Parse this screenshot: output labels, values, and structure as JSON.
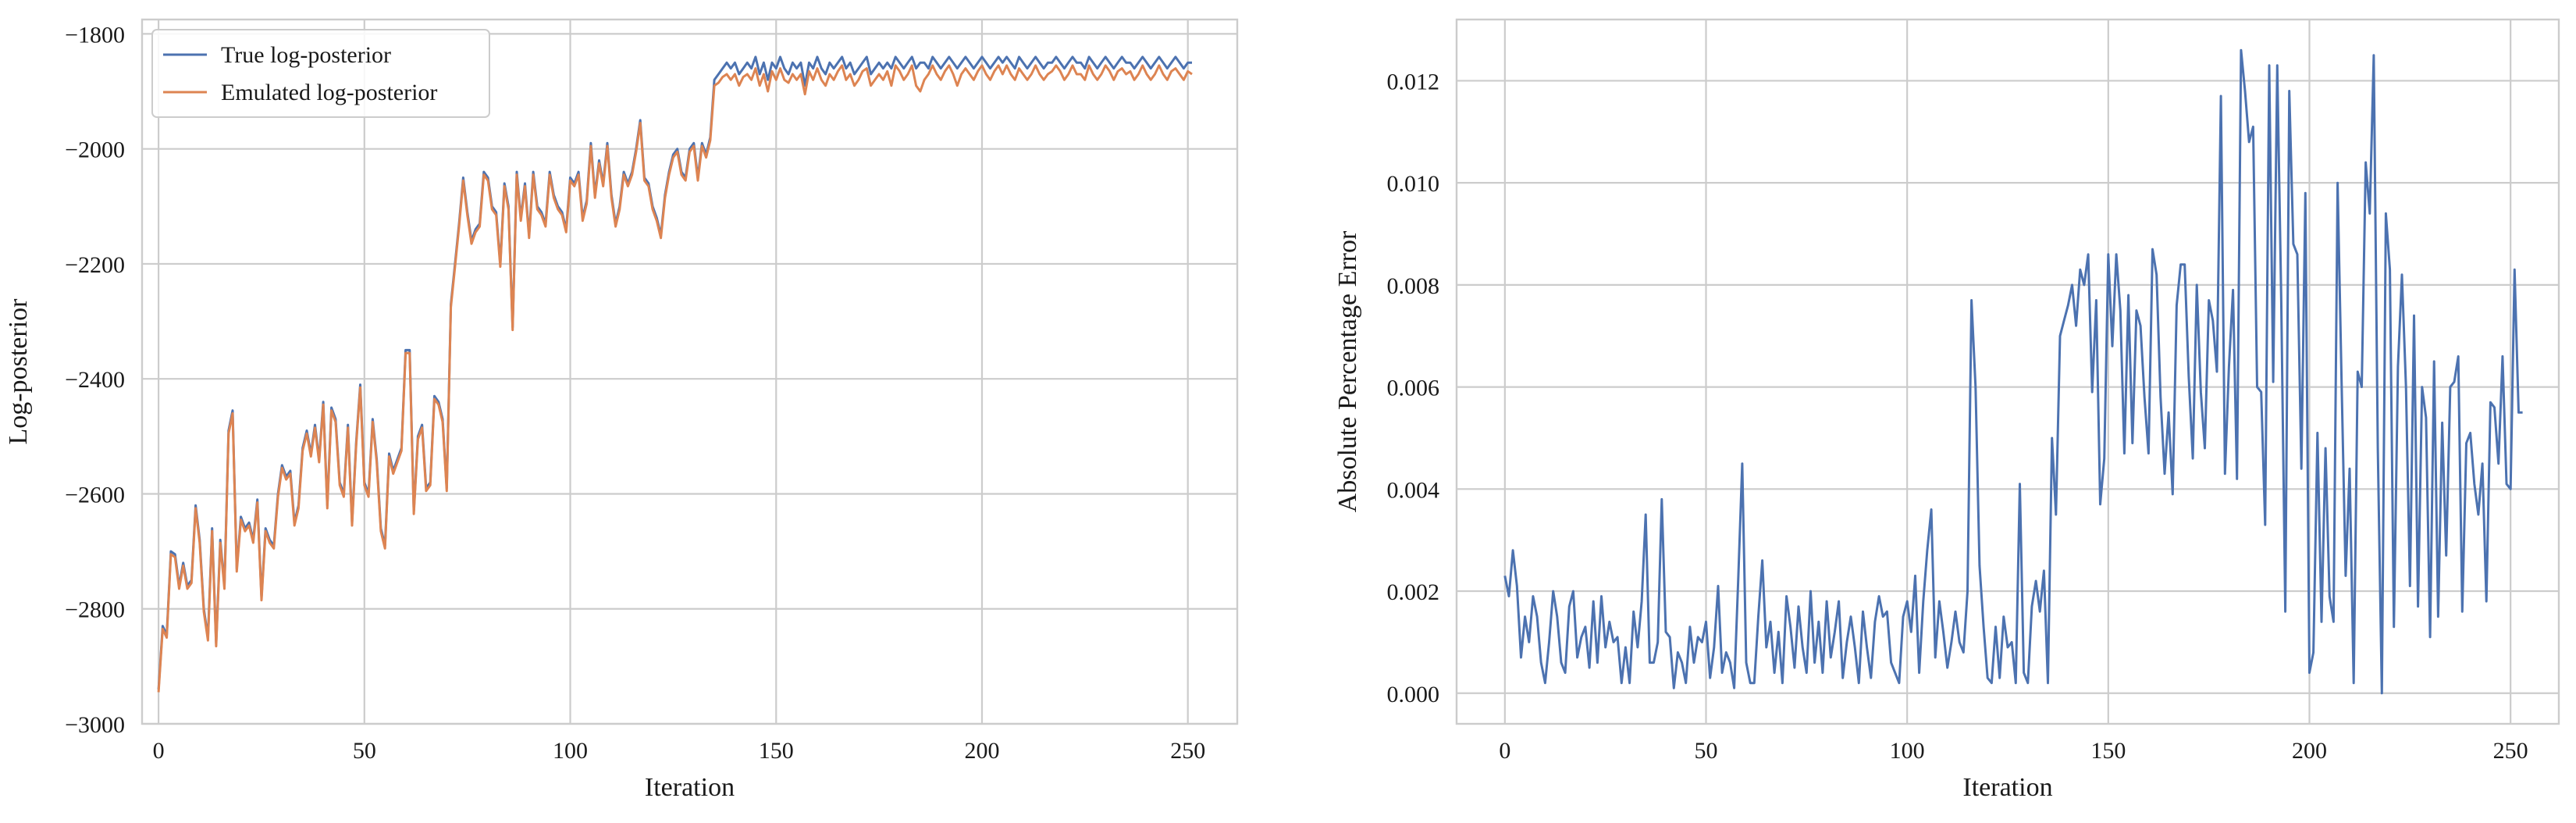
{
  "chart_data": [
    {
      "type": "line",
      "title": "",
      "xlabel": "Iteration",
      "ylabel": "Log-posterior",
      "xlim": [
        -4,
        262
      ],
      "ylim": [
        -3000,
        -1775
      ],
      "xticks": [
        0,
        50,
        100,
        150,
        200,
        250
      ],
      "yticks": [
        -3000,
        -2800,
        -2600,
        -2400,
        -2200,
        -2000,
        -1800
      ],
      "xtick_labels": [
        "0",
        "50",
        "100",
        "150",
        "200",
        "250"
      ],
      "ytick_labels": [
        "−3000",
        "−2800",
        "−2600",
        "−2400",
        "−2200",
        "−2000",
        "−1800"
      ],
      "grid": true,
      "legend_position": "top-left",
      "series": [
        {
          "name": "True log-posterior",
          "color": "#4c72b0",
          "y": [
            -2940,
            -2830,
            -2845,
            -2700,
            -2705,
            -2760,
            -2720,
            -2760,
            -2750,
            -2620,
            -2680,
            -2800,
            -2850,
            -2660,
            -2860,
            -2680,
            -2760,
            -2490,
            -2455,
            -2730,
            -2640,
            -2660,
            -2650,
            -2680,
            -2610,
            -2780,
            -2660,
            -2680,
            -2690,
            -2600,
            -2550,
            -2570,
            -2560,
            -2650,
            -2620,
            -2520,
            -2490,
            -2530,
            -2480,
            -2540,
            -2440,
            -2620,
            -2450,
            -2470,
            -2580,
            -2600,
            -2480,
            -2650,
            -2510,
            -2410,
            -2580,
            -2600,
            -2470,
            -2540,
            -2660,
            -2690,
            -2530,
            -2560,
            -2540,
            -2520,
            -2350,
            -2350,
            -2630,
            -2500,
            -2480,
            -2590,
            -2580,
            -2430,
            -2440,
            -2470,
            -2590,
            -2270,
            -2200,
            -2130,
            -2050,
            -2110,
            -2160,
            -2140,
            -2130,
            -2040,
            -2050,
            -2100,
            -2110,
            -2200,
            -2060,
            -2100,
            -2310,
            -2040,
            -2120,
            -2060,
            -2150,
            -2040,
            -2100,
            -2110,
            -2130,
            -2040,
            -2080,
            -2100,
            -2110,
            -2140,
            -2050,
            -2060,
            -2040,
            -2120,
            -2090,
            -1990,
            -2080,
            -2020,
            -2060,
            -1990,
            -2080,
            -2130,
            -2100,
            -2040,
            -2060,
            -2040,
            -2000,
            -1950,
            -2050,
            -2060,
            -2100,
            -2120,
            -2150,
            -2080,
            -2040,
            -2010,
            -2000,
            -2040,
            -2050,
            -2000,
            -1990,
            -2050,
            -1990,
            -2010,
            -1980,
            -1880,
            -1870,
            -1860,
            -1850,
            -1860,
            -1850,
            -1870,
            -1860,
            -1850,
            -1860,
            -1840,
            -1870,
            -1850,
            -1880,
            -1850,
            -1860,
            -1840,
            -1860,
            -1870,
            -1850,
            -1860,
            -1850,
            -1890,
            -1850,
            -1860,
            -1840,
            -1860,
            -1870,
            -1850,
            -1860,
            -1850,
            -1840,
            -1860,
            -1850,
            -1870,
            -1860,
            -1850,
            -1840,
            -1870,
            -1860,
            -1850,
            -1860,
            -1850,
            -1860,
            -1840,
            -1850,
            -1860,
            -1850,
            -1840,
            -1860,
            -1850,
            -1850,
            -1860,
            -1840,
            -1850,
            -1860,
            -1850,
            -1840,
            -1850,
            -1860,
            -1850,
            -1840,
            -1850,
            -1860,
            -1850,
            -1840,
            -1850,
            -1860,
            -1850,
            -1840,
            -1850,
            -1840,
            -1850,
            -1860,
            -1840,
            -1850,
            -1860,
            -1850,
            -1840,
            -1850,
            -1860,
            -1850,
            -1850,
            -1840,
            -1850,
            -1860,
            -1850,
            -1840,
            -1850,
            -1850,
            -1860,
            -1840,
            -1850,
            -1860,
            -1850,
            -1840,
            -1850,
            -1860,
            -1850,
            -1840,
            -1850,
            -1850,
            -1860,
            -1850,
            -1840,
            -1850,
            -1860,
            -1850,
            -1840,
            -1850,
            -1860,
            -1850,
            -1840,
            -1850,
            -1860,
            -1850,
            -1850
          ]
        },
        {
          "name": "Emulated log-posterior",
          "color": "#dd8452",
          "y": [
            -2945,
            -2835,
            -2850,
            -2705,
            -2710,
            -2765,
            -2725,
            -2765,
            -2755,
            -2625,
            -2685,
            -2805,
            -2855,
            -2665,
            -2865,
            -2685,
            -2765,
            -2495,
            -2460,
            -2735,
            -2645,
            -2665,
            -2655,
            -2685,
            -2615,
            -2785,
            -2665,
            -2685,
            -2695,
            -2605,
            -2555,
            -2575,
            -2565,
            -2655,
            -2625,
            -2525,
            -2495,
            -2535,
            -2485,
            -2545,
            -2445,
            -2625,
            -2455,
            -2475,
            -2585,
            -2605,
            -2485,
            -2655,
            -2515,
            -2415,
            -2585,
            -2605,
            -2475,
            -2545,
            -2665,
            -2695,
            -2535,
            -2565,
            -2545,
            -2525,
            -2355,
            -2355,
            -2635,
            -2505,
            -2485,
            -2595,
            -2585,
            -2435,
            -2445,
            -2475,
            -2595,
            -2275,
            -2205,
            -2135,
            -2055,
            -2115,
            -2165,
            -2145,
            -2135,
            -2045,
            -2055,
            -2105,
            -2115,
            -2205,
            -2065,
            -2105,
            -2315,
            -2045,
            -2125,
            -2065,
            -2155,
            -2045,
            -2105,
            -2115,
            -2135,
            -2045,
            -2085,
            -2105,
            -2115,
            -2145,
            -2055,
            -2065,
            -2045,
            -2125,
            -2095,
            -1995,
            -2085,
            -2025,
            -2065,
            -1995,
            -2085,
            -2135,
            -2105,
            -2045,
            -2065,
            -2045,
            -2005,
            -1955,
            -2055,
            -2065,
            -2105,
            -2125,
            -2155,
            -2085,
            -2045,
            -2015,
            -2005,
            -2045,
            -2055,
            -2005,
            -1995,
            -2055,
            -1995,
            -2015,
            -1985,
            -1890,
            -1885,
            -1875,
            -1870,
            -1880,
            -1870,
            -1890,
            -1875,
            -1870,
            -1880,
            -1860,
            -1890,
            -1870,
            -1900,
            -1865,
            -1880,
            -1860,
            -1880,
            -1885,
            -1870,
            -1880,
            -1870,
            -1905,
            -1865,
            -1880,
            -1860,
            -1880,
            -1890,
            -1870,
            -1880,
            -1865,
            -1855,
            -1880,
            -1870,
            -1890,
            -1880,
            -1865,
            -1860,
            -1890,
            -1880,
            -1870,
            -1880,
            -1865,
            -1890,
            -1855,
            -1865,
            -1880,
            -1870,
            -1855,
            -1890,
            -1900,
            -1880,
            -1870,
            -1855,
            -1870,
            -1880,
            -1865,
            -1855,
            -1870,
            -1890,
            -1870,
            -1860,
            -1870,
            -1880,
            -1865,
            -1855,
            -1870,
            -1880,
            -1865,
            -1855,
            -1870,
            -1855,
            -1870,
            -1880,
            -1860,
            -1870,
            -1880,
            -1870,
            -1855,
            -1870,
            -1880,
            -1870,
            -1865,
            -1855,
            -1865,
            -1880,
            -1870,
            -1855,
            -1870,
            -1870,
            -1880,
            -1855,
            -1870,
            -1880,
            -1870,
            -1855,
            -1865,
            -1880,
            -1865,
            -1860,
            -1870,
            -1865,
            -1880,
            -1870,
            -1855,
            -1870,
            -1880,
            -1870,
            -1855,
            -1870,
            -1880,
            -1865,
            -1860,
            -1870,
            -1880,
            -1865,
            -1870
          ]
        }
      ]
    },
    {
      "type": "line",
      "title": "",
      "xlabel": "Iteration",
      "ylabel": "Absolute Percentage Error",
      "xlim": [
        -12,
        262
      ],
      "ylim": [
        -0.0006,
        0.0132
      ],
      "xticks": [
        0,
        50,
        100,
        150,
        200,
        250
      ],
      "yticks": [
        0.0,
        0.002,
        0.004,
        0.006,
        0.008,
        0.01,
        0.012
      ],
      "xtick_labels": [
        "0",
        "50",
        "100",
        "150",
        "200",
        "250"
      ],
      "ytick_labels": [
        "0.000",
        "0.002",
        "0.004",
        "0.006",
        "0.008",
        "0.010",
        "0.012"
      ],
      "grid": true,
      "series": [
        {
          "color": "#4c72b0",
          "y": [
            0.0023,
            0.0019,
            0.0028,
            0.0021,
            0.0007,
            0.0015,
            0.001,
            0.0019,
            0.0015,
            0.0006,
            0.0002,
            0.001,
            0.002,
            0.0015,
            0.0006,
            0.0004,
            0.0017,
            0.002,
            0.0007,
            0.0011,
            0.0013,
            0.0005,
            0.0018,
            0.0006,
            0.0019,
            0.0009,
            0.0014,
            0.001,
            0.0011,
            0.0002,
            0.0009,
            0.0002,
            0.0016,
            0.0009,
            0.0018,
            0.0035,
            0.0006,
            0.0006,
            0.001,
            0.0038,
            0.0012,
            0.0011,
            0.0001,
            0.0008,
            0.0006,
            0.0002,
            0.0013,
            0.0006,
            0.0011,
            0.001,
            0.0014,
            0.0003,
            0.0009,
            0.0021,
            0.0004,
            0.0008,
            0.0006,
            0.0001,
            0.0022,
            0.0045,
            0.0006,
            0.0002,
            0.0002,
            0.0015,
            0.0026,
            0.0009,
            0.0014,
            0.0004,
            0.0012,
            0.0002,
            0.0019,
            0.0013,
            0.0005,
            0.0017,
            0.0009,
            0.0004,
            0.002,
            0.0006,
            0.0014,
            0.0004,
            0.0018,
            0.0007,
            0.0012,
            0.0018,
            0.0003,
            0.001,
            0.0015,
            0.0009,
            0.0002,
            0.0016,
            0.0009,
            0.0003,
            0.0014,
            0.0019,
            0.0015,
            0.0016,
            0.0006,
            0.0004,
            0.0002,
            0.0015,
            0.0018,
            0.0012,
            0.0023,
            0.0004,
            0.0018,
            0.0028,
            0.0036,
            0.0007,
            0.0018,
            0.0012,
            0.0005,
            0.001,
            0.0016,
            0.001,
            0.0008,
            0.002,
            0.0077,
            0.006,
            0.0025,
            0.0013,
            0.0003,
            0.0002,
            0.0013,
            0.0003,
            0.0015,
            0.0009,
            0.001,
            0.0002,
            0.0041,
            0.0004,
            0.0002,
            0.0017,
            0.0022,
            0.0016,
            0.0024,
            0.0002,
            0.005,
            0.0035,
            0.007,
            0.0073,
            0.0076,
            0.008,
            0.0072,
            0.0083,
            0.008,
            0.0086,
            0.0059,
            0.0077,
            0.0037,
            0.0046,
            0.0086,
            0.0068,
            0.0086,
            0.0075,
            0.0047,
            0.0078,
            0.0049,
            0.0075,
            0.0072,
            0.0058,
            0.0047,
            0.0087,
            0.0082,
            0.0058,
            0.0043,
            0.0055,
            0.0039,
            0.0076,
            0.0084,
            0.0084,
            0.0062,
            0.0046,
            0.008,
            0.0059,
            0.0048,
            0.0077,
            0.0073,
            0.0063,
            0.0117,
            0.0043,
            0.0064,
            0.0079,
            0.0042,
            0.0126,
            0.0118,
            0.0108,
            0.0111,
            0.006,
            0.0059,
            0.0033,
            0.0123,
            0.0061,
            0.0123,
            0.0077,
            0.0016,
            0.0118,
            0.0088,
            0.0086,
            0.0044,
            0.0098,
            0.0004,
            0.0008,
            0.0051,
            0.0014,
            0.0048,
            0.0019,
            0.0014,
            0.01,
            0.0061,
            0.0023,
            0.0044,
            0.0002,
            0.0063,
            0.006,
            0.0104,
            0.0094,
            0.0125,
            0.0048,
            0.0,
            0.0094,
            0.0083,
            0.0013,
            0.0064,
            0.0082,
            0.006,
            0.0021,
            0.0074,
            0.0017,
            0.006,
            0.0054,
            0.0011,
            0.0065,
            0.0015,
            0.0053,
            0.0027,
            0.006,
            0.0061,
            0.0066,
            0.0016,
            0.0049,
            0.0051,
            0.0041,
            0.0035,
            0.0045,
            0.0018,
            0.0057,
            0.0056,
            0.0045,
            0.0066,
            0.0041,
            0.004,
            0.0083,
            0.0055,
            0.0055
          ]
        }
      ]
    }
  ]
}
